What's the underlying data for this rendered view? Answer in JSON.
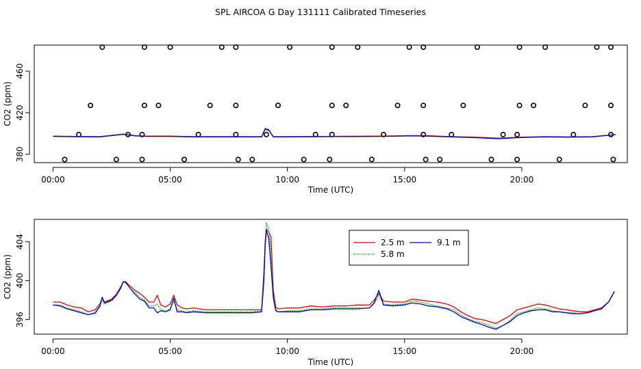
{
  "title": "SPL AIRCOA G  Day 131111  Calibrated Timeseries",
  "colors": {
    "2.5 m": "#e00000",
    "5.8 m": "#00b000",
    "9.1 m": "#0000cc",
    "axes": "#000000"
  },
  "chart_data": [
    {
      "type": "scatter+line",
      "panel": "top",
      "xlabel": "Time (UTC)",
      "ylabel": "CO2 (ppm)",
      "xlim": [
        -0.8,
        24.5
      ],
      "ylim": [
        372,
        485
      ],
      "xticks": [
        0,
        5,
        10,
        15,
        20
      ],
      "xtick_labels": [
        "00:00",
        "05:00",
        "10:00",
        "15:00",
        "20:00"
      ],
      "yticks": [
        380,
        420,
        460
      ],
      "ytick_labels": [
        "380",
        "420",
        "460"
      ],
      "markers": {
        "name": "calibration points",
        "points": [
          [
            0.5,
            375
          ],
          [
            2.7,
            375
          ],
          [
            3.8,
            375
          ],
          [
            5.6,
            375
          ],
          [
            7.9,
            375
          ],
          [
            8.5,
            375
          ],
          [
            10.7,
            375
          ],
          [
            11.8,
            375
          ],
          [
            13.6,
            375
          ],
          [
            15.9,
            375
          ],
          [
            16.5,
            375
          ],
          [
            18.7,
            375
          ],
          [
            19.8,
            375
          ],
          [
            21.6,
            375
          ],
          [
            23.9,
            375
          ],
          [
            1.1,
            399
          ],
          [
            3.2,
            399
          ],
          [
            3.8,
            399
          ],
          [
            6.2,
            399
          ],
          [
            7.8,
            399
          ],
          [
            9.1,
            399
          ],
          [
            11.2,
            399
          ],
          [
            11.9,
            399
          ],
          [
            14.1,
            399
          ],
          [
            15.8,
            399
          ],
          [
            17.0,
            399
          ],
          [
            19.2,
            399
          ],
          [
            19.8,
            399
          ],
          [
            22.2,
            399
          ],
          [
            23.8,
            399
          ],
          [
            1.6,
            427
          ],
          [
            3.9,
            427
          ],
          [
            4.5,
            427
          ],
          [
            6.7,
            427
          ],
          [
            7.8,
            427
          ],
          [
            9.6,
            427
          ],
          [
            11.9,
            427
          ],
          [
            12.5,
            427
          ],
          [
            14.7,
            427
          ],
          [
            15.8,
            427
          ],
          [
            17.5,
            427
          ],
          [
            19.9,
            427
          ],
          [
            20.5,
            427
          ],
          [
            22.7,
            427
          ],
          [
            23.8,
            427
          ],
          [
            2.1,
            483
          ],
          [
            3.9,
            483
          ],
          [
            5.0,
            483
          ],
          [
            7.2,
            483
          ],
          [
            7.8,
            483
          ],
          [
            10.1,
            483
          ],
          [
            11.9,
            483
          ],
          [
            13.0,
            483
          ],
          [
            15.2,
            483
          ],
          [
            15.8,
            483
          ],
          [
            18.1,
            483
          ],
          [
            19.9,
            483
          ],
          [
            21.0,
            483
          ],
          [
            23.2,
            483
          ],
          [
            23.8,
            483
          ]
        ]
      },
      "series": [
        {
          "name": "2.5 m",
          "x": [
            0,
            1,
            2,
            3,
            3.5,
            4,
            5,
            6,
            7,
            8,
            8.9,
            9.05,
            9.2,
            9.4,
            10,
            12,
            14,
            15.3,
            16,
            17,
            18,
            19,
            20,
            21,
            22,
            23,
            24
          ],
          "values": [
            397.5,
            397.2,
            397,
            399.5,
            398,
            397.5,
            397.5,
            397,
            397,
            397,
            397,
            404,
            403,
            397,
            397,
            397.3,
            397.5,
            398,
            397.8,
            397,
            396.5,
            395.5,
            396.5,
            397,
            396.8,
            397,
            399
          ]
        },
        {
          "name": "5.8 m",
          "x": [
            0,
            1,
            2,
            3,
            3.5,
            4,
            5,
            6,
            7,
            8,
            8.9,
            9.05,
            9.2,
            9.4,
            10,
            12,
            14,
            15.3,
            16,
            17,
            18,
            19,
            20,
            21,
            22,
            23,
            24
          ],
          "values": [
            397.3,
            397,
            396.8,
            399.3,
            397.8,
            397.3,
            397.3,
            396.8,
            396.8,
            396.8,
            396.8,
            405,
            404,
            396.8,
            396.8,
            397.1,
            397.3,
            397.8,
            397.6,
            396.8,
            396.2,
            395,
            396.3,
            396.8,
            396.6,
            396.8,
            399
          ]
        },
        {
          "name": "9.1 m",
          "x": [
            0,
            1,
            2,
            3,
            3.5,
            4,
            5,
            6,
            7,
            8,
            8.9,
            9.05,
            9.2,
            9.4,
            10,
            12,
            14,
            15.3,
            16,
            17,
            18,
            19,
            20,
            21,
            22,
            23,
            24
          ],
          "values": [
            397.2,
            396.9,
            396.7,
            399.2,
            397.7,
            397.2,
            397.2,
            396.7,
            396.7,
            396.7,
            396.7,
            404.5,
            403.5,
            396.7,
            396.7,
            397,
            397.2,
            397.7,
            397.5,
            396.7,
            396,
            395,
            396.2,
            396.7,
            396.5,
            396.7,
            399
          ]
        }
      ]
    },
    {
      "type": "line",
      "panel": "bottom",
      "xlabel": "Time (UTC)",
      "ylabel": "CO2 (ppm)",
      "xlim": [
        -0.8,
        24.5
      ],
      "ylim": [
        394.5,
        406.3
      ],
      "xticks": [
        0,
        5,
        10,
        15,
        20
      ],
      "xtick_labels": [
        "00:00",
        "05:00",
        "10:00",
        "15:00",
        "20:00"
      ],
      "yticks": [
        396,
        400,
        404
      ],
      "ytick_labels": [
        "396",
        "400",
        "404"
      ],
      "legend": {
        "placement": "top-center",
        "entries": [
          "2.5 m",
          "9.1 m",
          "5.8 m"
        ]
      },
      "series": [
        {
          "name": "2.5 m",
          "x": [
            0,
            0.3,
            0.6,
            0.9,
            1.2,
            1.5,
            1.8,
            2.0,
            2.1,
            2.2,
            2.3,
            2.5,
            2.7,
            2.9,
            3.0,
            3.1,
            3.3,
            3.5,
            3.7,
            3.9,
            4.1,
            4.3,
            4.45,
            4.6,
            4.8,
            5.0,
            5.15,
            5.3,
            5.5,
            5.7,
            6,
            6.5,
            7,
            7.5,
            8,
            8.5,
            8.9,
            9.0,
            9.05,
            9.1,
            9.2,
            9.3,
            9.4,
            9.5,
            9.6,
            10,
            10.5,
            11,
            11.5,
            12,
            12.5,
            13,
            13.5,
            13.7,
            13.9,
            14.1,
            14.5,
            15,
            15.3,
            15.7,
            16,
            16.4,
            16.8,
            17.1,
            17.4,
            17.7,
            18,
            18.3,
            18.6,
            18.9,
            19.2,
            19.5,
            19.8,
            20.1,
            20.4,
            20.7,
            21.0,
            21.3,
            21.6,
            21.9,
            22.2,
            22.5,
            22.8,
            23.1,
            23.4,
            23.7,
            23.95
          ],
          "values": [
            397.8,
            397.8,
            397.5,
            397.3,
            397.2,
            396.8,
            397,
            397.6,
            398.2,
            397.8,
            397.9,
            398.1,
            398.6,
            399.4,
            399.9,
            399.9,
            399.4,
            399,
            398.7,
            398.3,
            397.8,
            397.8,
            398.5,
            397.5,
            397.3,
            397.6,
            398.5,
            397.5,
            397.2,
            397.1,
            397.2,
            397.0,
            397.0,
            397.0,
            397.0,
            397.0,
            397.0,
            401.0,
            404.0,
            405.3,
            405.0,
            404.5,
            399.0,
            397.3,
            397.1,
            397.2,
            397.2,
            397.4,
            397.3,
            397.4,
            397.4,
            397.5,
            397.5,
            398.0,
            398.7,
            397.9,
            397.8,
            397.8,
            398.1,
            398.0,
            397.9,
            397.8,
            397.6,
            397.3,
            396.8,
            396.4,
            396.1,
            396.0,
            395.8,
            395.6,
            396.0,
            396.4,
            397.0,
            397.2,
            397.4,
            397.6,
            397.5,
            397.3,
            397.1,
            397.0,
            396.9,
            396.8,
            396.8,
            397.0,
            397.2,
            397.8,
            398.9
          ]
        },
        {
          "name": "5.8 m",
          "x": [
            0,
            0.3,
            0.6,
            0.9,
            1.2,
            1.5,
            1.8,
            2.0,
            2.1,
            2.2,
            2.3,
            2.5,
            2.7,
            2.9,
            3.0,
            3.1,
            3.3,
            3.5,
            3.7,
            3.9,
            4.1,
            4.3,
            4.45,
            4.6,
            4.8,
            5.0,
            5.15,
            5.3,
            5.5,
            5.7,
            6,
            6.5,
            7,
            7.5,
            8,
            8.5,
            8.9,
            9.0,
            9.05,
            9.1,
            9.2,
            9.3,
            9.4,
            9.5,
            9.6,
            10,
            10.5,
            11,
            11.5,
            12,
            12.5,
            13,
            13.5,
            13.7,
            13.9,
            14.1,
            14.5,
            15,
            15.3,
            15.7,
            16,
            16.4,
            16.8,
            17.1,
            17.4,
            17.7,
            18,
            18.3,
            18.6,
            18.9,
            19.2,
            19.5,
            19.8,
            20.1,
            20.4,
            20.7,
            21.0,
            21.3,
            21.6,
            21.9,
            22.2,
            22.5,
            22.8,
            23.1,
            23.4,
            23.7,
            23.95
          ],
          "values": [
            397.5,
            397.5,
            397.2,
            397.0,
            396.8,
            396.5,
            396.6,
            397.3,
            398.0,
            397.6,
            397.7,
            397.9,
            398.4,
            399.2,
            399.9,
            399.8,
            399.2,
            398.8,
            398.3,
            398.0,
            397.4,
            397.4,
            397.6,
            397.0,
            396.9,
            397.1,
            397.9,
            397.0,
            396.9,
            396.8,
            396.9,
            396.8,
            396.8,
            396.8,
            396.8,
            396.8,
            396.9,
            400.5,
            403.8,
            406.0,
            405.3,
            403.0,
            398.6,
            397.0,
            396.8,
            396.9,
            396.9,
            397.1,
            397.1,
            397.2,
            397.2,
            397.2,
            397.2,
            397.6,
            398.5,
            397.6,
            397.5,
            397.6,
            397.9,
            397.8,
            397.6,
            397.4,
            397.2,
            397.0,
            396.5,
            396.1,
            395.8,
            395.7,
            395.4,
            395.1,
            395.4,
            395.9,
            396.6,
            396.8,
            397.0,
            397.2,
            397.1,
            396.9,
            396.8,
            396.7,
            396.7,
            396.6,
            396.7,
            396.9,
            397.1,
            397.8,
            398.9
          ]
        },
        {
          "name": "9.1 m",
          "x": [
            0,
            0.3,
            0.6,
            0.9,
            1.2,
            1.5,
            1.8,
            2.0,
            2.1,
            2.2,
            2.3,
            2.5,
            2.7,
            2.9,
            3.0,
            3.1,
            3.3,
            3.5,
            3.7,
            3.9,
            4.1,
            4.3,
            4.45,
            4.6,
            4.8,
            5.0,
            5.15,
            5.3,
            5.5,
            5.7,
            6,
            6.5,
            7,
            7.5,
            8,
            8.5,
            8.9,
            9.0,
            9.05,
            9.1,
            9.2,
            9.3,
            9.4,
            9.5,
            9.6,
            10,
            10.5,
            11,
            11.5,
            12,
            12.5,
            13,
            13.5,
            13.7,
            13.9,
            14.1,
            14.5,
            15,
            15.3,
            15.7,
            16,
            16.4,
            16.8,
            17.1,
            17.4,
            17.7,
            18,
            18.3,
            18.6,
            18.9,
            19.2,
            19.5,
            19.8,
            20.1,
            20.4,
            20.7,
            21.0,
            21.3,
            21.6,
            21.9,
            22.2,
            22.5,
            22.8,
            23.1,
            23.4,
            23.7,
            23.95
          ],
          "values": [
            397.5,
            397.4,
            397.1,
            396.9,
            396.7,
            396.5,
            396.7,
            397.4,
            398.3,
            397.7,
            397.8,
            398.0,
            398.5,
            399.3,
            399.9,
            399.8,
            399.2,
            398.6,
            398.1,
            397.9,
            397.2,
            397.2,
            396.7,
            396.9,
            396.8,
            397.0,
            398.2,
            396.8,
            396.8,
            396.7,
            396.8,
            396.7,
            396.7,
            396.7,
            396.7,
            396.7,
            396.8,
            400.0,
            403.5,
            405.2,
            404.4,
            401.5,
            398.2,
            396.9,
            396.8,
            396.8,
            396.8,
            397.0,
            397.0,
            397.1,
            397.1,
            397.1,
            397.2,
            397.7,
            399.0,
            397.5,
            397.4,
            397.5,
            397.7,
            397.6,
            397.4,
            397.3,
            397.1,
            396.8,
            396.3,
            396.0,
            395.7,
            395.5,
            395.2,
            395.0,
            395.4,
            395.8,
            396.4,
            396.7,
            396.9,
            397.0,
            397.0,
            396.8,
            396.8,
            396.7,
            396.6,
            396.6,
            396.7,
            396.9,
            397.1,
            397.8,
            398.9
          ]
        }
      ]
    }
  ]
}
